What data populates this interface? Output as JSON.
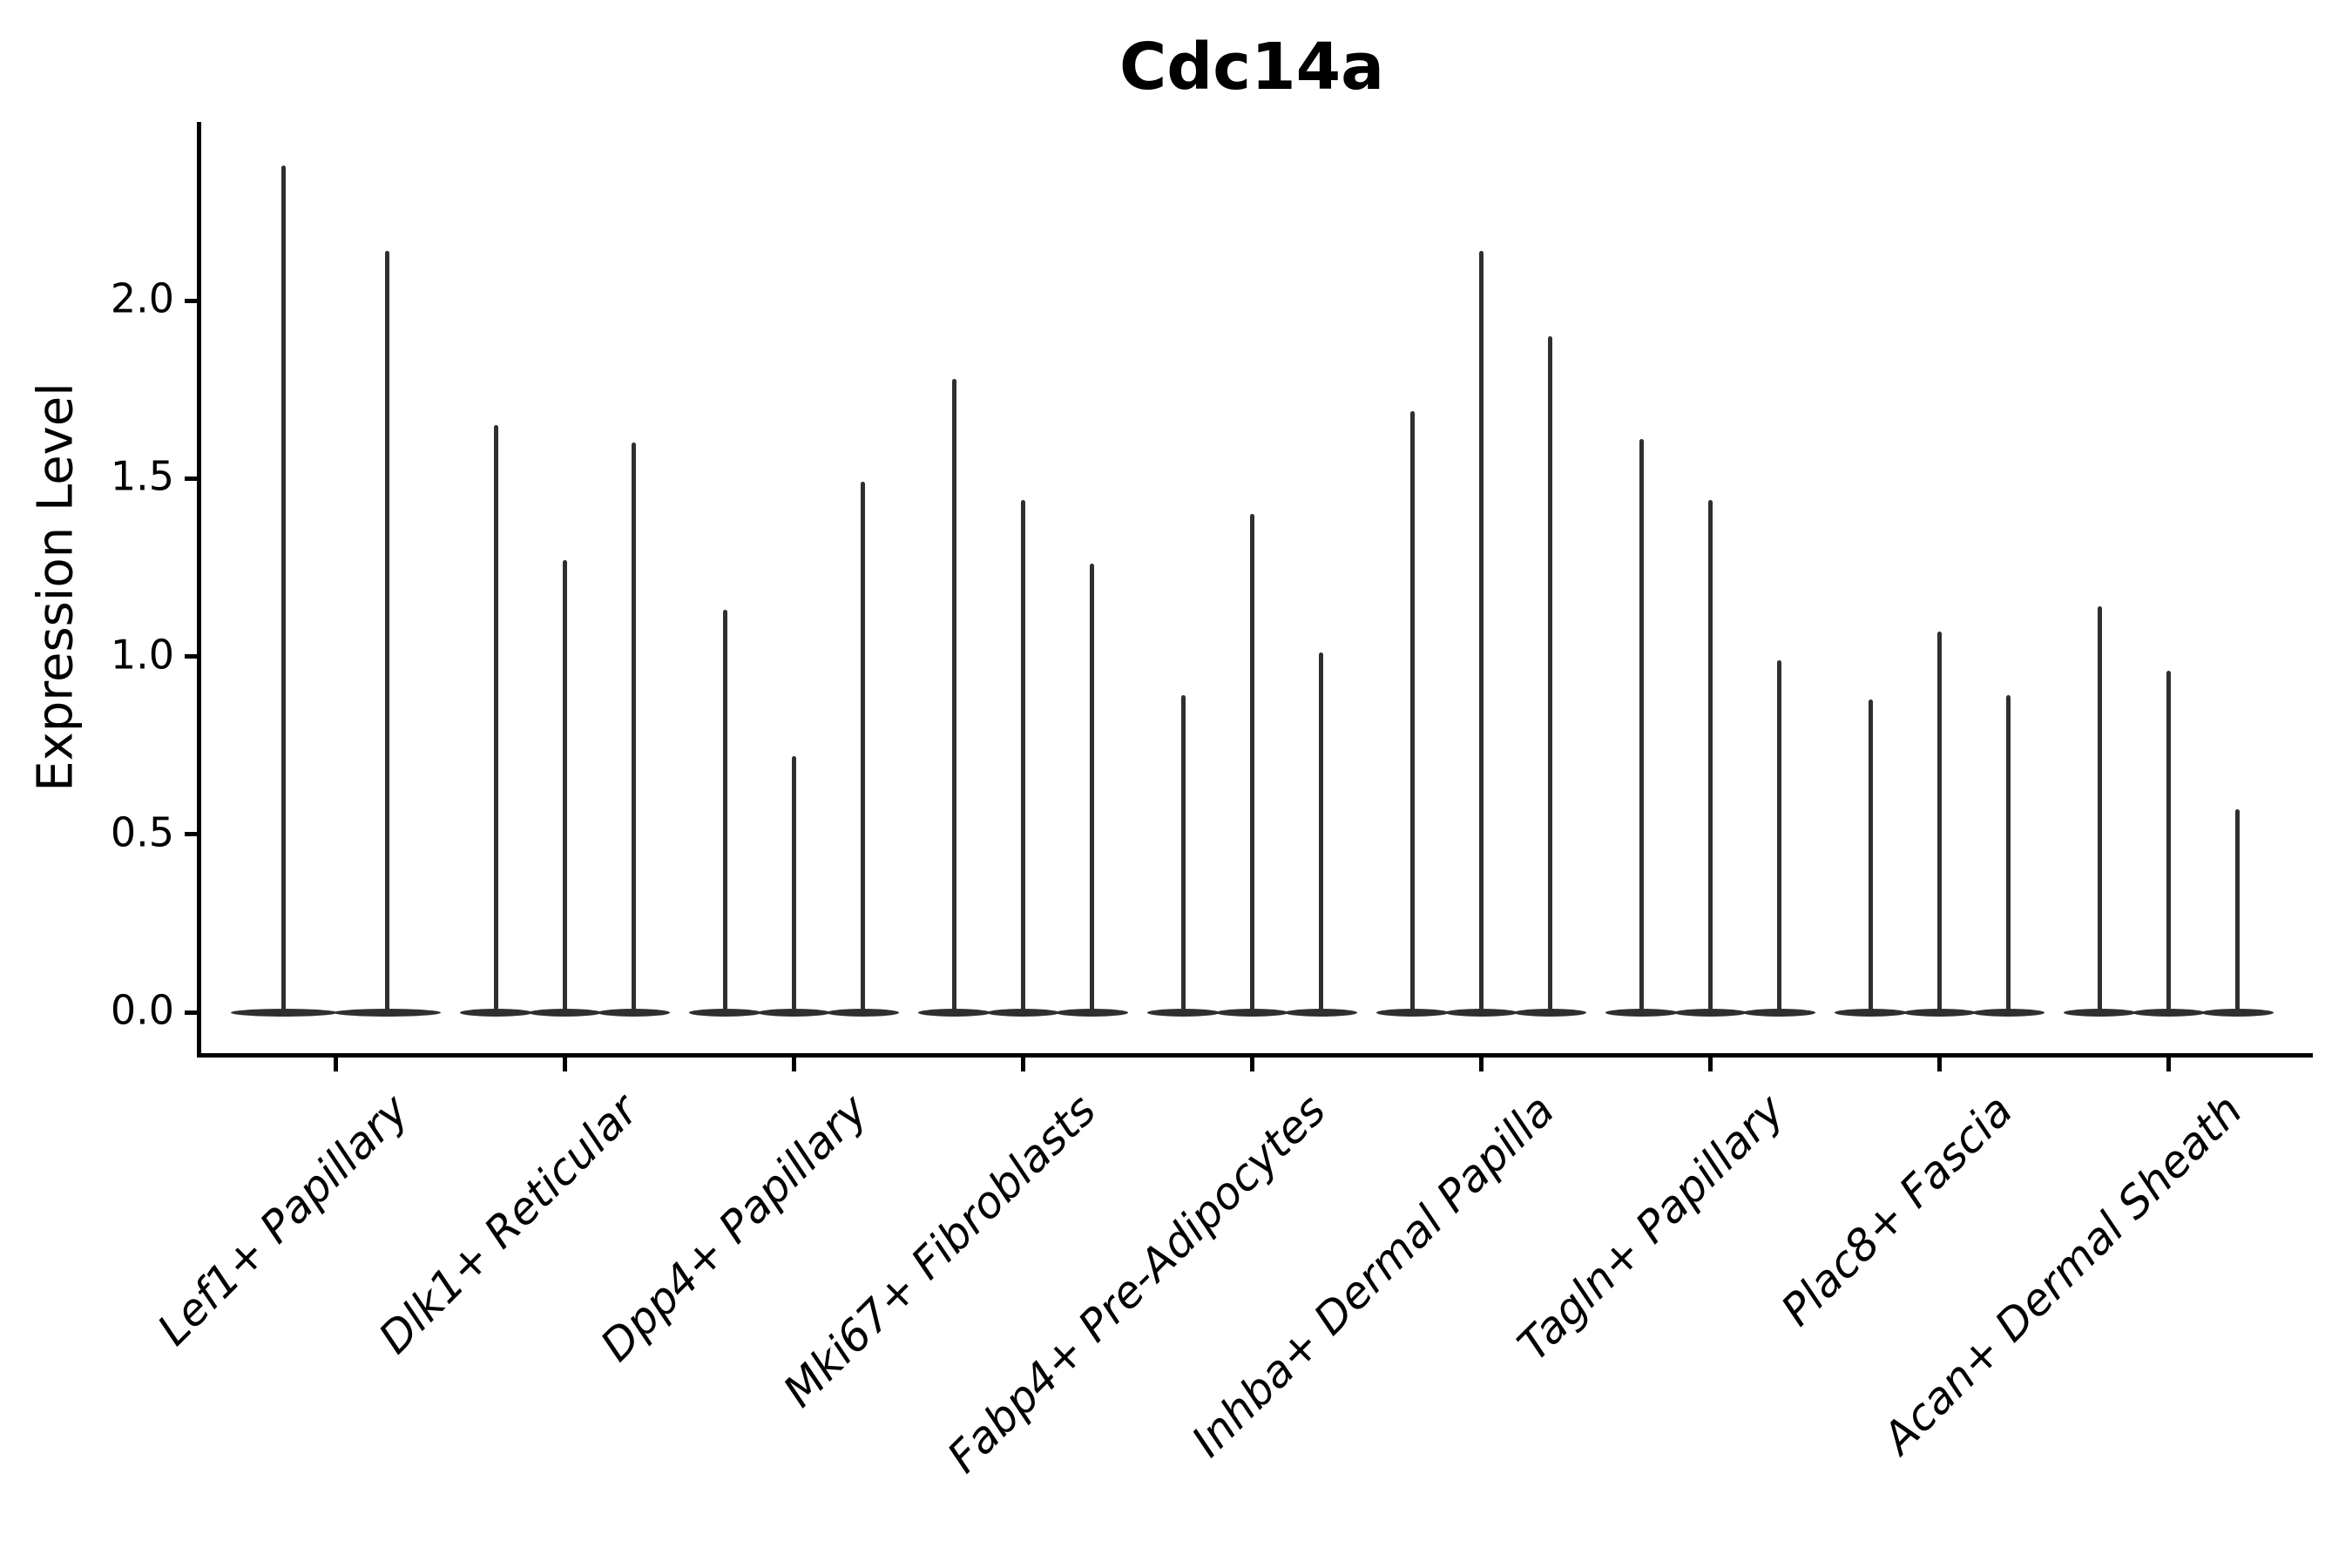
{
  "chart_data": {
    "type": "violin",
    "title": "Cdc14a",
    "ylabel": "Expression Level",
    "xlabel": "",
    "ylim": [
      -0.12,
      2.5
    ],
    "grid": false,
    "legend": "none",
    "background": "#ffffff",
    "ink_color": "#2f2f2f",
    "yticks": {
      "values": [
        0.0,
        0.5,
        1.0,
        1.5,
        2.0
      ],
      "labels": [
        "0.0",
        "0.5",
        "1.0",
        "1.5",
        "2.0"
      ]
    },
    "categories": [
      "Lef1+ Papillary",
      "Dlk1+ Reticular",
      "Dpp4+ Papillary",
      "Mki67+ Fibroblasts",
      "Fabp4+ Pre-Adipocytes",
      "Inhba+ Dermal Papilla",
      "Tagln+ Papillary",
      "Plac8+ Fascia",
      "Acan+ Dermal Sheath"
    ],
    "groups": [
      {
        "category": "Lef1+ Papillary",
        "violin_max": [
          2.38,
          2.14
        ]
      },
      {
        "category": "Dlk1+ Reticular",
        "violin_max": [
          1.65,
          1.27,
          1.6
        ]
      },
      {
        "category": "Dpp4+ Papillary",
        "violin_max": [
          1.13,
          0.72,
          1.49
        ]
      },
      {
        "category": "Mki67+ Fibroblasts",
        "violin_max": [
          1.78,
          1.44,
          1.26
        ]
      },
      {
        "category": "Fabp4+ Pre-Adipocytes",
        "violin_max": [
          0.89,
          1.4,
          1.01
        ]
      },
      {
        "category": "Inhba+ Dermal Papilla",
        "violin_max": [
          1.69,
          2.14,
          1.9
        ]
      },
      {
        "category": "Tagln+ Papillary",
        "violin_max": [
          1.61,
          1.44,
          0.99
        ]
      },
      {
        "category": "Plac8+ Fascia",
        "violin_max": [
          0.88,
          1.07,
          0.89
        ]
      },
      {
        "category": "Acan+ Dermal Sheath",
        "violin_max": [
          1.14,
          0.96,
          0.57
        ]
      }
    ],
    "distribution_note": "each violin is bottom-heavy: flat wide mass at 0 with a thin tail (spike) reaching violin_max"
  }
}
